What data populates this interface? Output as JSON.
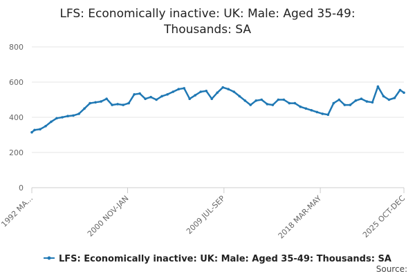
{
  "title_lines": [
    "LFS: Economically inactive: UK: Male: Aged 35-49:",
    "Thousands: SA"
  ],
  "source_label": "Source:",
  "chart_data": {
    "type": "line",
    "title": "LFS: Economically inactive: UK: Male: Aged 35-49: Thousands: SA",
    "xlabel": "",
    "ylabel": "",
    "ylim": [
      0,
      800
    ],
    "y_ticks": [
      0,
      200,
      400,
      600,
      800
    ],
    "x_tick_labels": [
      "1992 MA...",
      "2000 NOV-JAN",
      "2009 JUL-SEP",
      "2018 MAR-MAY",
      "2025 OCT-DEC"
    ],
    "x_tick_years": [
      1992.25,
      2000.9,
      2009.6,
      2018.3,
      2025.85
    ],
    "x_range": [
      1992.25,
      2025.85
    ],
    "grid": "horizontal",
    "legend": "bottom",
    "color": "#1f78b4",
    "series": [
      {
        "name": "LFS: Economically inactive: UK: Male: Aged 35-49: Thousands: SA",
        "x": [
          1992.25,
          1992.5,
          1993,
          1993.5,
          1994,
          1994.5,
          1995,
          1995.5,
          1996,
          1996.5,
          1997,
          1997.5,
          1998,
          1998.5,
          1999,
          1999.5,
          2000,
          2000.5,
          2001,
          2001.5,
          2002,
          2002.5,
          2003,
          2003.5,
          2004,
          2004.5,
          2005,
          2005.5,
          2006,
          2006.5,
          2007,
          2007.5,
          2008,
          2008.5,
          2009,
          2009.5,
          2010,
          2010.5,
          2011,
          2011.5,
          2012,
          2012.5,
          2013,
          2013.5,
          2014,
          2014.5,
          2015,
          2015.5,
          2016,
          2016.5,
          2017,
          2017.5,
          2018,
          2018.5,
          2019,
          2019.5,
          2020,
          2020.5,
          2021,
          2021.5,
          2022,
          2022.5,
          2023,
          2023.5,
          2024,
          2024.5,
          2025,
          2025.5,
          2025.85
        ],
        "values": [
          315,
          328,
          332,
          350,
          375,
          395,
          400,
          407,
          410,
          420,
          450,
          480,
          485,
          490,
          505,
          470,
          475,
          470,
          480,
          530,
          535,
          505,
          515,
          500,
          520,
          530,
          545,
          560,
          565,
          505,
          525,
          545,
          550,
          505,
          540,
          570,
          560,
          545,
          520,
          495,
          470,
          495,
          500,
          475,
          470,
          500,
          500,
          480,
          480,
          460,
          450,
          440,
          430,
          420,
          415,
          480,
          500,
          470,
          470,
          495,
          505,
          490,
          485,
          575,
          520,
          500,
          510,
          555,
          540
        ]
      }
    ]
  }
}
